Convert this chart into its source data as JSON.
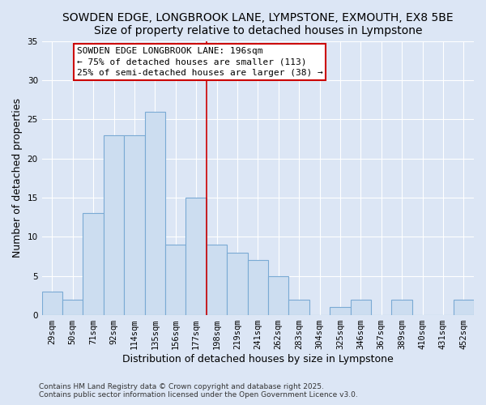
{
  "title1": "SOWDEN EDGE, LONGBROOK LANE, LYMPSTONE, EXMOUTH, EX8 5BE",
  "title2": "Size of property relative to detached houses in Lympstone",
  "xlabel": "Distribution of detached houses by size in Lympstone",
  "ylabel": "Number of detached properties",
  "bar_labels": [
    "29sqm",
    "50sqm",
    "71sqm",
    "92sqm",
    "114sqm",
    "135sqm",
    "156sqm",
    "177sqm",
    "198sqm",
    "219sqm",
    "241sqm",
    "262sqm",
    "283sqm",
    "304sqm",
    "325sqm",
    "346sqm",
    "367sqm",
    "389sqm",
    "410sqm",
    "431sqm",
    "452sqm"
  ],
  "bar_heights": [
    3,
    2,
    13,
    23,
    23,
    26,
    9,
    15,
    9,
    8,
    7,
    5,
    2,
    0,
    1,
    2,
    0,
    2,
    0,
    0,
    2
  ],
  "bar_color": "#ccddf0",
  "bar_edge_color": "#7aaad4",
  "vline_color": "#cc0000",
  "annotation_title": "SOWDEN EDGE LONGBROOK LANE: 196sqm",
  "annotation_line1": "← 75% of detached houses are smaller (113)",
  "annotation_line2": "25% of semi-detached houses are larger (38) →",
  "annotation_box_color": "#ffffff",
  "annotation_box_edge": "#cc0000",
  "ylim": [
    0,
    35
  ],
  "yticks": [
    0,
    5,
    10,
    15,
    20,
    25,
    30,
    35
  ],
  "bg_color": "#dce6f5",
  "grid_color": "#ffffff",
  "footer1": "Contains HM Land Registry data © Crown copyright and database right 2025.",
  "footer2": "Contains public sector information licensed under the Open Government Licence v3.0.",
  "title1_fontsize": 10,
  "title2_fontsize": 10,
  "xlabel_fontsize": 9,
  "ylabel_fontsize": 9,
  "tick_fontsize": 7.5,
  "annotation_fontsize": 8,
  "footer_fontsize": 6.5
}
